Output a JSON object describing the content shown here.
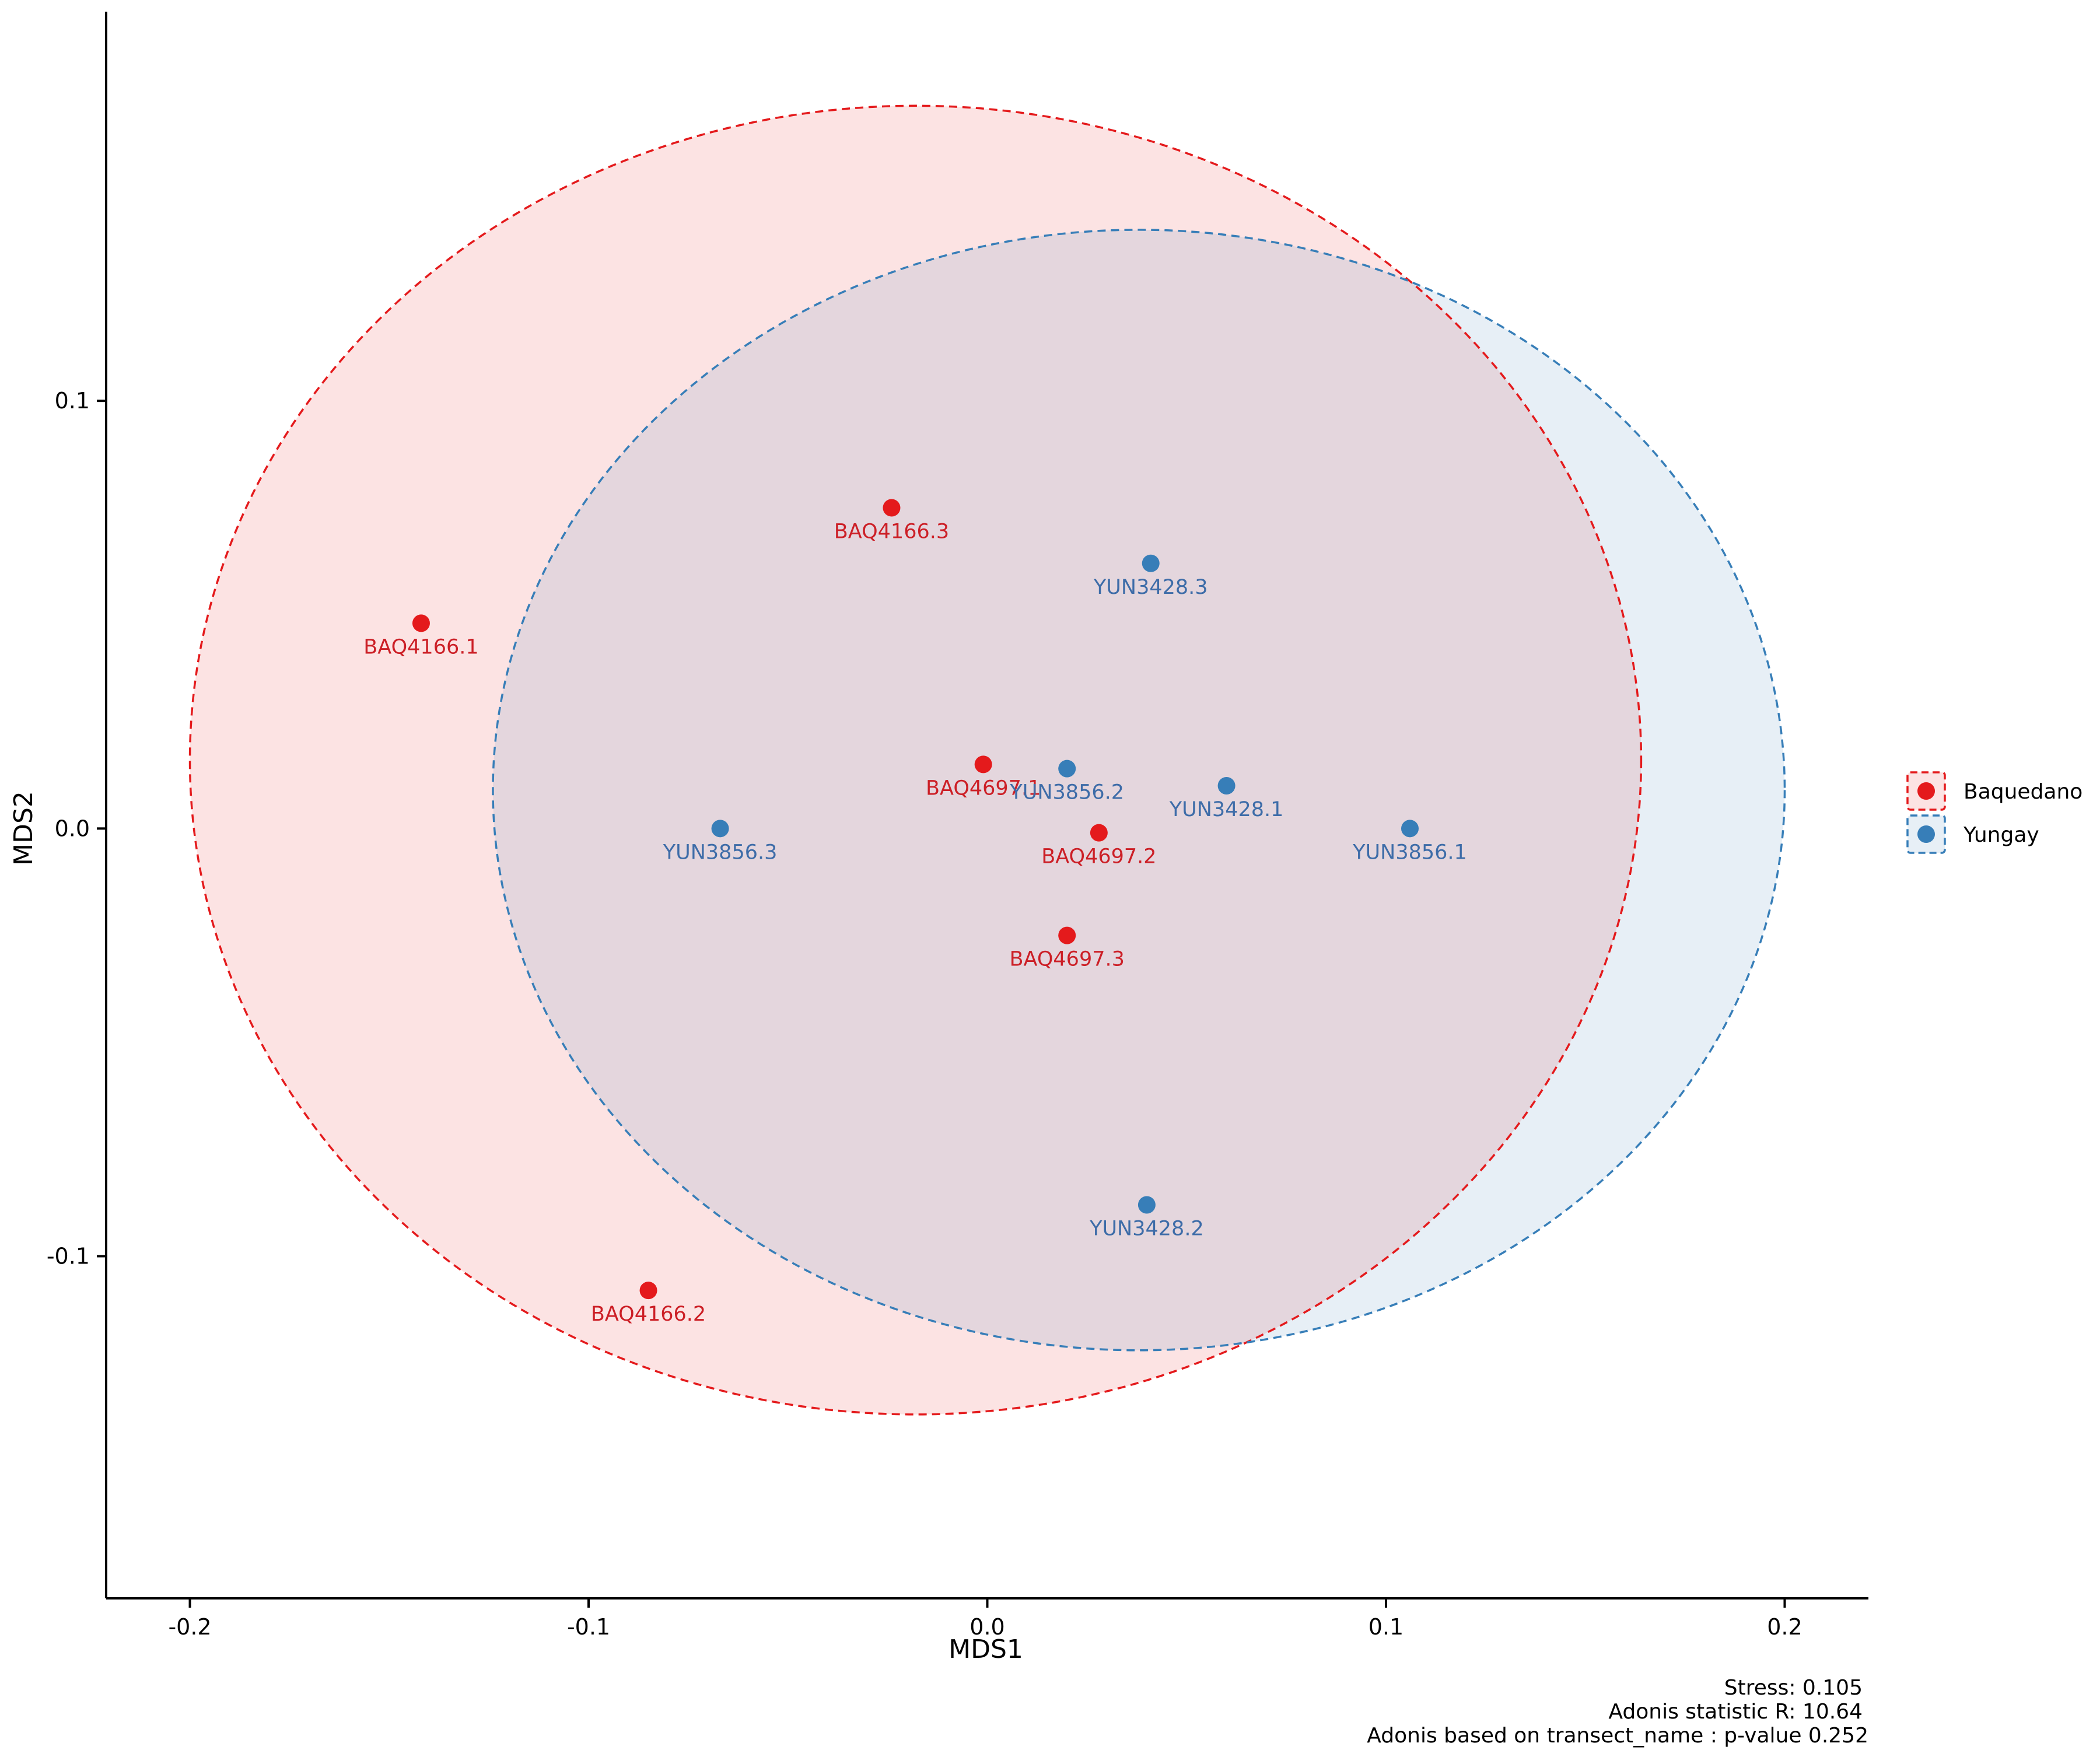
{
  "chart_data": {
    "type": "scatter",
    "title": "",
    "xlabel": "MDS1",
    "ylabel": "MDS2",
    "xlim": [
      -0.221,
      0.221
    ],
    "ylim": [
      -0.18,
      0.191
    ],
    "x_ticks": [
      -0.2,
      -0.1,
      0.0,
      0.1,
      0.2
    ],
    "x_tick_labels": [
      "-0.2",
      "-0.1",
      "0.0",
      "0.1",
      "0.2"
    ],
    "y_ticks": [
      -0.1,
      0.0,
      0.1
    ],
    "y_tick_labels": [
      "-0.1",
      "0.0",
      "0.1"
    ],
    "grid": false,
    "legend": {
      "placement": "right",
      "entries": [
        "Baquedano",
        "Yungay"
      ]
    },
    "series": [
      {
        "name": "Baquedano",
        "color": "#e41a1c",
        "label_color": "#cc1f26",
        "fill": "#fbe3e3",
        "points": [
          {
            "label": "BAQ4166.3",
            "x": -0.024,
            "y": 0.075
          },
          {
            "label": "BAQ4166.1",
            "x": -0.142,
            "y": 0.048
          },
          {
            "label": "BAQ4697.1",
            "x": -0.001,
            "y": 0.015
          },
          {
            "label": "BAQ4697.2",
            "x": 0.028,
            "y": -0.001
          },
          {
            "label": "BAQ4697.3",
            "x": 0.02,
            "y": -0.025
          },
          {
            "label": "BAQ4166.2",
            "x": -0.085,
            "y": -0.108
          }
        ],
        "ellipse": {
          "cx": -0.018,
          "cy": 0.016,
          "rx": 0.182,
          "ry": 0.153
        }
      },
      {
        "name": "Yungay",
        "color": "#377eb8",
        "label_color": "#3d6ca8",
        "fill": "#e5eef6",
        "points": [
          {
            "label": "YUN3428.3",
            "x": 0.041,
            "y": 0.062
          },
          {
            "label": "YUN3856.2",
            "x": 0.02,
            "y": 0.014
          },
          {
            "label": "YUN3428.1",
            "x": 0.06,
            "y": 0.01
          },
          {
            "label": "YUN3856.3",
            "x": -0.067,
            "y": 0.0
          },
          {
            "label": "YUN3856.1",
            "x": 0.106,
            "y": 0.0
          },
          {
            "label": "YUN3428.2",
            "x": 0.04,
            "y": -0.088
          }
        ],
        "ellipse": {
          "cx": 0.038,
          "cy": 0.009,
          "rx": 0.162,
          "ry": 0.131
        }
      }
    ],
    "annotations": [
      "Stress: 0.105",
      "Adonis statistic R: 10.64",
      "Adonis based on  transect_name : p-value 0.252"
    ]
  }
}
